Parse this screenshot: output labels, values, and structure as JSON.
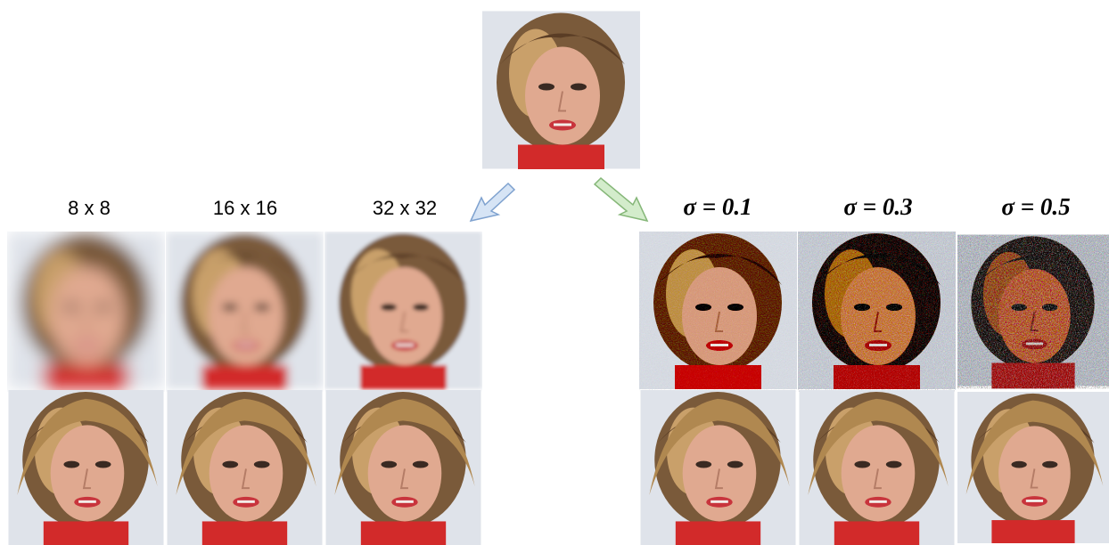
{
  "labels": {
    "left": [
      "8 x 8",
      "16 x 16",
      "32 x 32"
    ],
    "right": [
      "σ = 0.1",
      "σ = 0.3",
      "σ = 0.5"
    ]
  }
}
